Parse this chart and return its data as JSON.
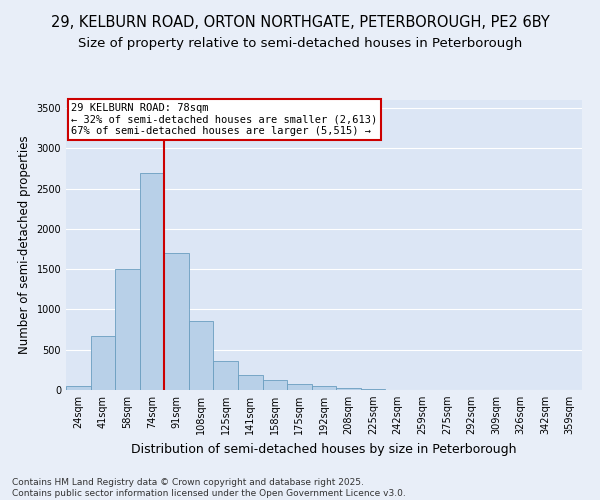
{
  "title_line1": "29, KELBURN ROAD, ORTON NORTHGATE, PETERBOROUGH, PE2 6BY",
  "title_line2": "Size of property relative to semi-detached houses in Peterborough",
  "xlabel": "Distribution of semi-detached houses by size in Peterborough",
  "ylabel": "Number of semi-detached properties",
  "categories": [
    "24sqm",
    "41sqm",
    "58sqm",
    "74sqm",
    "91sqm",
    "108sqm",
    "125sqm",
    "141sqm",
    "158sqm",
    "175sqm",
    "192sqm",
    "208sqm",
    "225sqm",
    "242sqm",
    "259sqm",
    "275sqm",
    "292sqm",
    "309sqm",
    "326sqm",
    "342sqm",
    "359sqm"
  ],
  "values": [
    50,
    670,
    1500,
    2700,
    1700,
    860,
    360,
    190,
    130,
    75,
    50,
    30,
    10,
    5,
    2,
    1,
    0,
    0,
    0,
    0,
    0
  ],
  "bar_color": "#b8d0e8",
  "bar_edge_color": "#6a9ec0",
  "red_line_x": 3.5,
  "annotation_line1": "29 KELBURN ROAD: 78sqm",
  "annotation_line2": "← 32% of semi-detached houses are smaller (2,613)",
  "annotation_line3": "67% of semi-detached houses are larger (5,515) →",
  "annotation_box_facecolor": "#ffffff",
  "annotation_box_edgecolor": "#cc0000",
  "red_line_color": "#cc0000",
  "footer_line1": "Contains HM Land Registry data © Crown copyright and database right 2025.",
  "footer_line2": "Contains public sector information licensed under the Open Government Licence v3.0.",
  "background_color": "#e8eef8",
  "plot_bg_color": "#dce6f5",
  "ylim": [
    0,
    3600
  ],
  "yticks": [
    0,
    500,
    1000,
    1500,
    2000,
    2500,
    3000,
    3500
  ],
  "grid_color": "#ffffff",
  "title_fontsize": 10.5,
  "subtitle_fontsize": 9.5,
  "xlabel_fontsize": 9,
  "ylabel_fontsize": 8.5,
  "tick_fontsize": 7,
  "annotation_fontsize": 7.5,
  "footer_fontsize": 6.5
}
